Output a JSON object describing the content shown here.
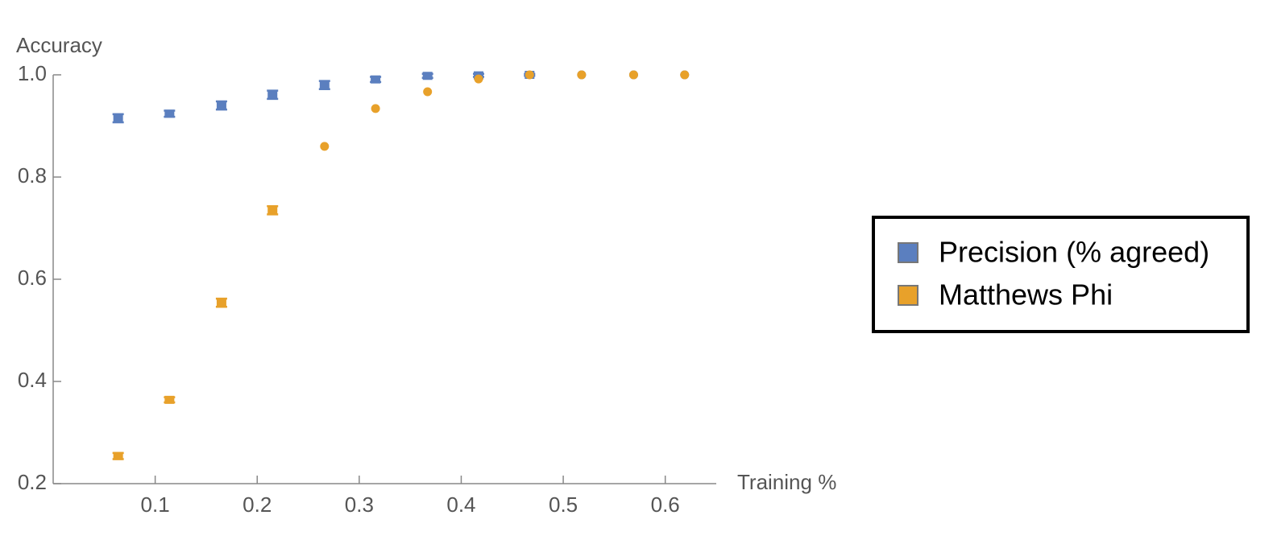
{
  "chart_data": {
    "type": "scatter",
    "x_label": "Training %",
    "y_label": "Accuracy",
    "x": [
      0.0637,
      0.114,
      0.165,
      0.215,
      0.266,
      0.316,
      0.367,
      0.417,
      0.467,
      0.518,
      0.569,
      0.619
    ],
    "series": [
      {
        "name": "Precision (% agreed)",
        "color": "#5b7fbf",
        "values": [
          0.915,
          0.924,
          0.94,
          0.961,
          0.98,
          0.991,
          0.998,
          0.999,
          1.0,
          1.0,
          1.0,
          1.0
        ],
        "errors": [
          0.008,
          0.006,
          0.008,
          0.008,
          0.008,
          0.005,
          0.004,
          0.003,
          0.002,
          0,
          0,
          0
        ]
      },
      {
        "name": "Matthews Phi",
        "color": "#e8a12a",
        "values": [
          0.254,
          0.364,
          0.554,
          0.735,
          0.86,
          0.934,
          0.967,
          0.992,
          1.0,
          1.0,
          1.0,
          1.0
        ],
        "errors": [
          0.006,
          0.005,
          0.008,
          0.008,
          0,
          0,
          0,
          0,
          0,
          0,
          0,
          0
        ]
      }
    ],
    "xlim": [
      0,
      0.65
    ],
    "ylim": [
      0.2,
      1.0
    ],
    "xticks": [
      0.1,
      0.2,
      0.3,
      0.4,
      0.5,
      0.6
    ],
    "yticks": [
      0.2,
      0.4,
      0.6,
      0.8,
      {
        "value": 1,
        "label": "1.0"
      }
    ],
    "legend": "right"
  }
}
